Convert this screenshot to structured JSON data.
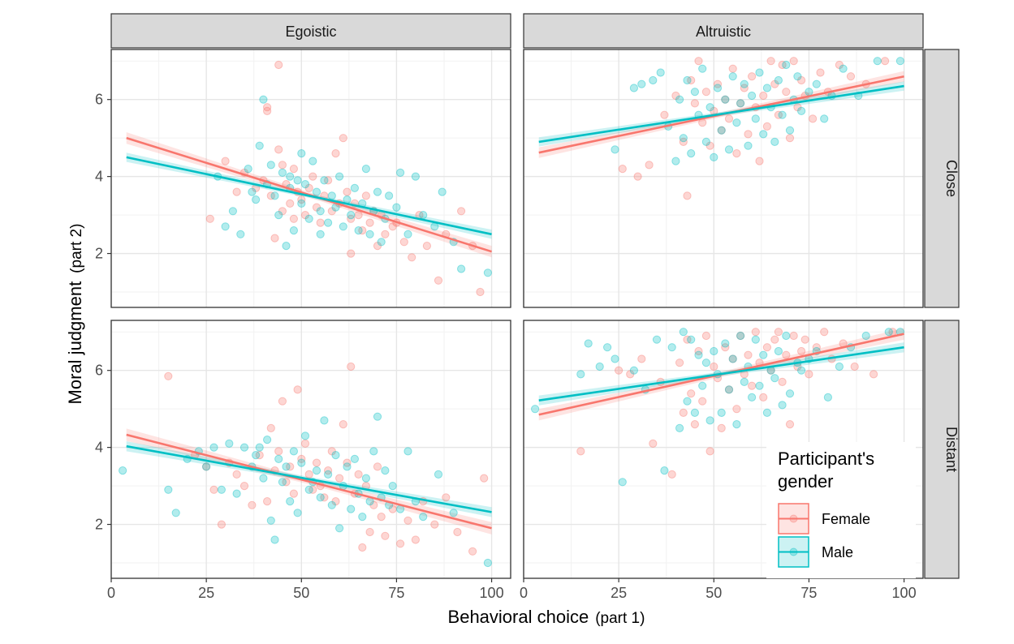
{
  "chart_data": {
    "type": "scatter",
    "xlabel": "Behavioral choice",
    "xlabel_suffix": "(part 1)",
    "ylabel": "Moral judgment",
    "ylabel_suffix": "(part 2)",
    "xlim": [
      0,
      105
    ],
    "ylim": [
      0.6,
      7.3
    ],
    "x_ticks": [
      0,
      25,
      50,
      75,
      100
    ],
    "y_ticks": [
      2,
      4,
      6
    ],
    "grid": true,
    "columns": [
      "Egoistic",
      "Altruistic"
    ],
    "rows": [
      "Close",
      "Distant"
    ],
    "legend": {
      "title_line1": "Participant's",
      "title_line2": "gender",
      "position": "bottom-right",
      "entries": [
        "Female",
        "Male"
      ]
    },
    "colors": {
      "Female": "#F8766D",
      "Male": "#00BFC4"
    },
    "panels": [
      {
        "column": "Egoistic",
        "row": "Close",
        "fits": [
          {
            "name": "Female",
            "x": [
              4,
              100
            ],
            "y": [
              5.0,
              2.05
            ],
            "se": 0.15
          },
          {
            "name": "Male",
            "x": [
              4,
              100
            ],
            "y": [
              4.5,
              2.5
            ],
            "se": 0.12
          }
        ],
        "points": [
          {
            "name": "Female",
            "x": [
              26,
              30,
              33,
              35,
              38,
              40,
              41,
              41,
              42,
              43,
              44,
              44,
              45,
              45,
              46,
              47,
              48,
              48,
              49,
              50,
              51,
              52,
              53,
              54,
              55,
              56,
              57,
              58,
              59,
              60,
              61,
              62,
              63,
              63,
              64,
              65,
              66,
              67,
              68,
              69,
              70,
              71,
              72,
              74,
              75,
              77,
              79,
              81,
              83,
              86,
              88,
              92,
              95,
              97
            ],
            "y": [
              2.9,
              4.4,
              3.6,
              4.1,
              3.7,
              3.9,
              5.8,
              5.7,
              3.5,
              2.4,
              6.9,
              4.7,
              4.3,
              3.1,
              3.8,
              3.3,
              4.2,
              2.9,
              3.6,
              3.4,
              3.0,
              3.7,
              4.0,
              3.2,
              2.8,
              3.5,
              3.9,
              3.1,
              4.6,
              3.3,
              5.0,
              3.6,
              2.0,
              2.9,
              3.3,
              3.0,
              2.6,
              3.5,
              2.8,
              3.1,
              2.2,
              3.0,
              2.5,
              2.7,
              2.8,
              2.3,
              1.9,
              3.0,
              2.2,
              1.3,
              2.5,
              3.1,
              2.2,
              1.0
            ]
          },
          {
            "name": "Male",
            "x": [
              28,
              30,
              32,
              34,
              36,
              37,
              38,
              39,
              40,
              41,
              42,
              43,
              44,
              45,
              46,
              47,
              47,
              48,
              49,
              50,
              50,
              51,
              52,
              53,
              54,
              55,
              55,
              56,
              57,
              58,
              59,
              60,
              61,
              62,
              63,
              64,
              65,
              66,
              67,
              68,
              69,
              70,
              71,
              72,
              73,
              75,
              76,
              78,
              80,
              82,
              85,
              87,
              90,
              92,
              99
            ],
            "y": [
              4.0,
              2.7,
              3.1,
              2.5,
              4.2,
              3.6,
              3.4,
              4.8,
              6.0,
              3.8,
              4.3,
              3.5,
              3.0,
              4.1,
              2.2,
              3.7,
              4.0,
              2.6,
              3.9,
              3.3,
              4.6,
              3.8,
              2.9,
              4.4,
              3.6,
              3.1,
              2.5,
              3.9,
              2.8,
              3.5,
              3.2,
              4.0,
              2.7,
              3.4,
              3.0,
              3.7,
              2.6,
              3.3,
              4.2,
              2.5,
              3.1,
              3.6,
              2.3,
              2.9,
              3.5,
              3.2,
              4.1,
              2.5,
              4.0,
              3.0,
              2.7,
              3.6,
              2.3,
              1.6,
              1.5
            ]
          }
        ]
      },
      {
        "column": "Altruistic",
        "row": "Close",
        "fits": [
          {
            "name": "Female",
            "x": [
              4,
              100
            ],
            "y": [
              4.62,
              6.6
            ],
            "se": 0.14
          },
          {
            "name": "Male",
            "x": [
              4,
              100
            ],
            "y": [
              4.9,
              6.35
            ],
            "se": 0.12
          }
        ],
        "points": [
          {
            "name": "Female",
            "x": [
              26,
              30,
              33,
              37,
              40,
              42,
              43,
              44,
              45,
              46,
              47,
              48,
              49,
              50,
              51,
              52,
              53,
              54,
              55,
              56,
              57,
              58,
              59,
              60,
              61,
              62,
              63,
              64,
              65,
              66,
              67,
              68,
              69,
              70,
              71,
              72,
              73,
              74,
              76,
              78,
              80,
              83,
              86,
              90,
              95
            ],
            "y": [
              4.2,
              4.0,
              4.3,
              5.6,
              6.1,
              4.9,
              3.5,
              6.5,
              5.9,
              7.0,
              5.4,
              6.2,
              4.8,
              5.7,
              6.4,
              5.2,
              6.0,
              5.5,
              6.8,
              4.6,
              5.9,
              6.3,
              5.1,
              6.6,
              5.8,
              4.4,
              6.1,
              5.3,
              7.0,
              6.4,
              5.6,
              6.9,
              6.2,
              5.0,
              7.0,
              5.8,
              6.5,
              6.1,
              5.5,
              6.7,
              6.2,
              6.9,
              6.6,
              6.4,
              7.0
            ]
          },
          {
            "name": "Male",
            "x": [
              24,
              29,
              31,
              34,
              36,
              38,
              40,
              41,
              42,
              43,
              44,
              45,
              46,
              47,
              48,
              49,
              50,
              51,
              52,
              53,
              54,
              55,
              56,
              57,
              58,
              59,
              60,
              61,
              62,
              63,
              64,
              65,
              66,
              67,
              68,
              69,
              70,
              71,
              72,
              73,
              75,
              77,
              79,
              81,
              84,
              88,
              93,
              99
            ],
            "y": [
              4.7,
              6.3,
              6.4,
              6.5,
              6.7,
              5.3,
              4.4,
              6.0,
              5.0,
              6.5,
              4.6,
              6.2,
              5.6,
              6.8,
              4.9,
              5.8,
              4.5,
              6.3,
              5.2,
              6.0,
              4.7,
              6.6,
              5.4,
              5.9,
              6.4,
              4.8,
              6.1,
              5.5,
              6.7,
              5.1,
              6.3,
              5.8,
              4.9,
              6.5,
              5.6,
              6.9,
              5.2,
              6.0,
              6.6,
              5.7,
              6.2,
              6.4,
              5.5,
              6.1,
              6.8,
              6.1,
              7.0,
              7.0
            ]
          }
        ]
      },
      {
        "column": "Egoistic",
        "row": "Distant",
        "fits": [
          {
            "name": "Female",
            "x": [
              4,
              100
            ],
            "y": [
              4.33,
              1.9
            ],
            "se": 0.16
          },
          {
            "name": "Male",
            "x": [
              4,
              100
            ],
            "y": [
              4.03,
              2.32
            ],
            "se": 0.13
          }
        ],
        "points": [
          {
            "name": "Female",
            "x": [
              15,
              22,
              25,
              27,
              29,
              31,
              33,
              35,
              37,
              39,
              41,
              42,
              43,
              44,
              45,
              46,
              47,
              48,
              49,
              50,
              51,
              52,
              53,
              54,
              55,
              56,
              57,
              58,
              59,
              60,
              61,
              62,
              63,
              64,
              65,
              66,
              67,
              68,
              69,
              70,
              71,
              72,
              74,
              76,
              78,
              80,
              82,
              85,
              88,
              91,
              95,
              98
            ],
            "y": [
              5.85,
              3.8,
              3.5,
              2.9,
              2.0,
              3.6,
              3.3,
              3.0,
              2.5,
              3.8,
              2.6,
              4.5,
              3.4,
              3.9,
              5.2,
              3.1,
              3.5,
              2.8,
              5.5,
              3.7,
              4.1,
              3.3,
              2.9,
              3.6,
              3.0,
              2.7,
              3.4,
              3.9,
              2.6,
              3.2,
              4.6,
              3.6,
              6.1,
              2.8,
              3.3,
              1.4,
              3.0,
              1.8,
              2.5,
              3.5,
              2.2,
              1.7,
              2.4,
              1.5,
              2.1,
              1.6,
              2.6,
              2.0,
              2.7,
              1.8,
              1.3,
              3.2
            ]
          },
          {
            "name": "Male",
            "x": [
              3,
              15,
              17,
              20,
              23,
              25,
              27,
              29,
              31,
              33,
              35,
              37,
              38,
              39,
              40,
              41,
              42,
              43,
              44,
              45,
              46,
              47,
              48,
              49,
              50,
              51,
              52,
              53,
              54,
              55,
              56,
              57,
              58,
              59,
              60,
              61,
              62,
              63,
              64,
              65,
              66,
              67,
              68,
              69,
              70,
              71,
              72,
              73,
              74,
              76,
              78,
              80,
              82,
              86,
              90,
              99
            ],
            "y": [
              3.4,
              2.9,
              2.3,
              3.7,
              3.9,
              3.5,
              4.0,
              2.9,
              4.1,
              2.8,
              4.0,
              3.5,
              3.8,
              4.0,
              3.2,
              4.2,
              2.1,
              1.6,
              3.7,
              3.1,
              3.5,
              2.6,
              3.9,
              2.3,
              3.6,
              4.3,
              2.9,
              3.1,
              3.4,
              2.7,
              4.7,
              3.3,
              2.5,
              3.8,
              1.9,
              3.0,
              3.5,
              2.4,
              3.7,
              2.8,
              2.2,
              3.2,
              2.6,
              3.9,
              4.8,
              2.7,
              3.4,
              2.5,
              3.0,
              2.4,
              3.9,
              2.6,
              2.2,
              3.3,
              2.3,
              1.0
            ]
          }
        ]
      },
      {
        "column": "Altruistic",
        "row": "Distant",
        "fits": [
          {
            "name": "Female",
            "x": [
              4,
              100
            ],
            "y": [
              4.85,
              6.95
            ],
            "se": 0.15
          },
          {
            "name": "Male",
            "x": [
              4,
              100
            ],
            "y": [
              5.22,
              6.6
            ],
            "se": 0.13
          }
        ],
        "points": [
          {
            "name": "Female",
            "x": [
              15,
              25,
              28,
              31,
              34,
              36,
              39,
              41,
              42,
              43,
              44,
              45,
              46,
              47,
              48,
              49,
              50,
              51,
              52,
              53,
              54,
              55,
              56,
              57,
              58,
              59,
              60,
              61,
              62,
              63,
              64,
              65,
              66,
              67,
              68,
              69,
              70,
              71,
              72,
              73,
              74,
              75,
              77,
              79,
              81,
              84,
              87,
              92,
              97
            ],
            "y": [
              3.9,
              6.0,
              5.9,
              6.3,
              4.1,
              5.7,
              3.3,
              6.2,
              4.9,
              6.8,
              5.4,
              4.6,
              6.5,
              5.2,
              6.9,
              3.9,
              6.1,
              5.8,
              4.5,
              6.6,
              5.5,
              6.3,
              5.0,
              6.9,
              5.9,
              6.4,
              5.6,
              7.0,
              6.2,
              5.3,
              6.6,
              6.0,
              6.8,
              7.0,
              5.7,
              6.4,
              4.6,
              6.9,
              6.1,
              6.5,
              6.8,
              5.9,
              6.6,
              7.0,
              6.3,
              6.7,
              6.1,
              5.9,
              7.0
            ]
          },
          {
            "name": "Male",
            "x": [
              3,
              15,
              17,
              20,
              22,
              24,
              26,
              29,
              32,
              35,
              37,
              39,
              41,
              42,
              43,
              44,
              45,
              46,
              47,
              48,
              49,
              50,
              51,
              52,
              53,
              54,
              55,
              56,
              57,
              58,
              59,
              60,
              61,
              62,
              63,
              64,
              65,
              66,
              67,
              68,
              69,
              70,
              72,
              73,
              75,
              77,
              80,
              83,
              86,
              90,
              96,
              99
            ],
            "y": [
              5.0,
              5.9,
              6.7,
              6.1,
              6.6,
              6.3,
              3.1,
              6.0,
              5.5,
              6.8,
              3.4,
              6.6,
              4.5,
              7.0,
              5.2,
              6.8,
              4.9,
              6.4,
              5.6,
              6.2,
              4.7,
              6.5,
              5.9,
              4.9,
              6.7,
              5.5,
              6.3,
              4.6,
              6.9,
              5.7,
              6.1,
              5.3,
              6.8,
              5.6,
              6.4,
              4.9,
              6.0,
              5.8,
              6.5,
              5.1,
              6.9,
              5.4,
              6.2,
              6.0,
              6.3,
              6.5,
              5.3,
              6.1,
              6.6,
              6.9,
              7.0,
              7.0
            ]
          }
        ]
      }
    ]
  }
}
